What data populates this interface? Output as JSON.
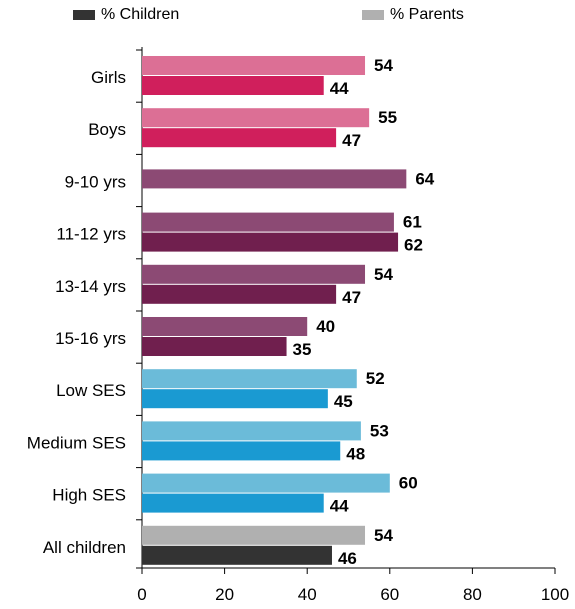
{
  "legend": {
    "children_label": "% Children",
    "parents_label": "% Parents",
    "children_color": "#333333",
    "parents_color": "#b0b0b0"
  },
  "chart_data": {
    "type": "bar",
    "orientation": "horizontal",
    "title": "",
    "xlabel": "",
    "ylabel": "",
    "xlim": [
      0,
      100
    ],
    "x_ticks": [
      0,
      20,
      40,
      60,
      80,
      100
    ],
    "grid": false,
    "legend_position": "top",
    "categories": [
      "Girls",
      "Boys",
      "9-10 yrs",
      "11-12 yrs",
      "13-14 yrs",
      "15-16 yrs",
      "Low  SES",
      "Medium SES",
      "High SES",
      "All children"
    ],
    "series": [
      {
        "name": "% Parents",
        "values": [
          54,
          55,
          64,
          61,
          54,
          40,
          52,
          53,
          60,
          54
        ]
      },
      {
        "name": "% Children",
        "values": [
          44,
          47,
          null,
          62,
          47,
          35,
          45,
          48,
          44,
          46
        ]
      }
    ],
    "bar_colors": {
      "parents": [
        "#dc6f95",
        "#dc6f95",
        "#8c4a74",
        "#8c4a74",
        "#8c4a74",
        "#8c4a74",
        "#6bbbd9",
        "#6bbbd9",
        "#6bbbd9",
        "#b0b0b0"
      ],
      "children": [
        "#d01f5c",
        "#d01f5c",
        "#701f4e",
        "#701f4e",
        "#701f4e",
        "#701f4e",
        "#1a9ad2",
        "#1a9ad2",
        "#1a9ad2",
        "#333333"
      ]
    }
  }
}
